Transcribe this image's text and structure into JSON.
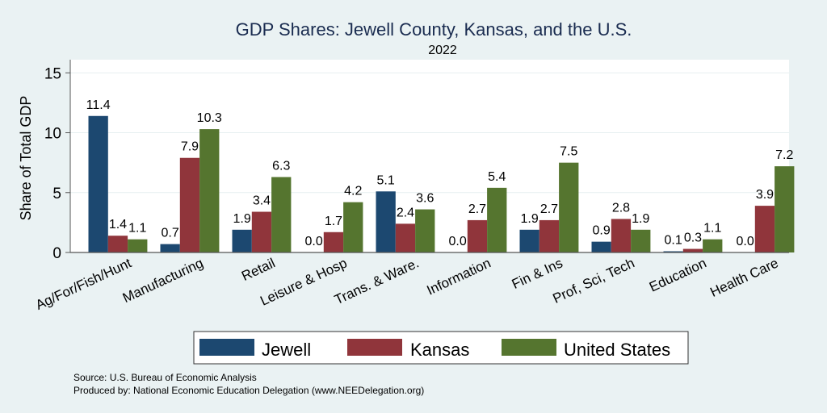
{
  "chart_data": {
    "type": "bar",
    "title": "GDP Shares: Jewell County, Kansas, and the U.S.",
    "subtitle": "2022",
    "xlabel": "",
    "ylabel": "Share of Total GDP",
    "ylim": [
      0,
      16.1
    ],
    "yticks": [
      0,
      5,
      10,
      15
    ],
    "grid": true,
    "legend_position": "bottom",
    "categories": [
      "Ag/For/Fish/Hunt",
      "Manufacturing",
      "Retail",
      "Leisure & Hosp",
      "Trans. & Ware.",
      "Information",
      "Fin & Ins",
      "Prof, Sci, Tech",
      "Education",
      "Health Care"
    ],
    "series": [
      {
        "name": "Jewell",
        "color": "#1c4870",
        "values": [
          11.4,
          0.7,
          1.9,
          0.0,
          5.1,
          0.0,
          1.9,
          0.9,
          0.1,
          0.0
        ]
      },
      {
        "name": "Kansas",
        "color": "#90353b",
        "values": [
          1.4,
          7.9,
          3.4,
          1.7,
          2.4,
          2.7,
          2.7,
          2.8,
          0.3,
          3.9
        ]
      },
      {
        "name": "United States",
        "color": "#55752f",
        "values": [
          1.1,
          10.3,
          6.3,
          4.2,
          3.6,
          5.4,
          7.5,
          1.9,
          1.1,
          7.2
        ]
      }
    ],
    "notes": [
      "Source: U.S. Bureau of Economic Analysis",
      "Produced by: National Economic Education Delegation (www.NEEDelegation.org)"
    ]
  }
}
